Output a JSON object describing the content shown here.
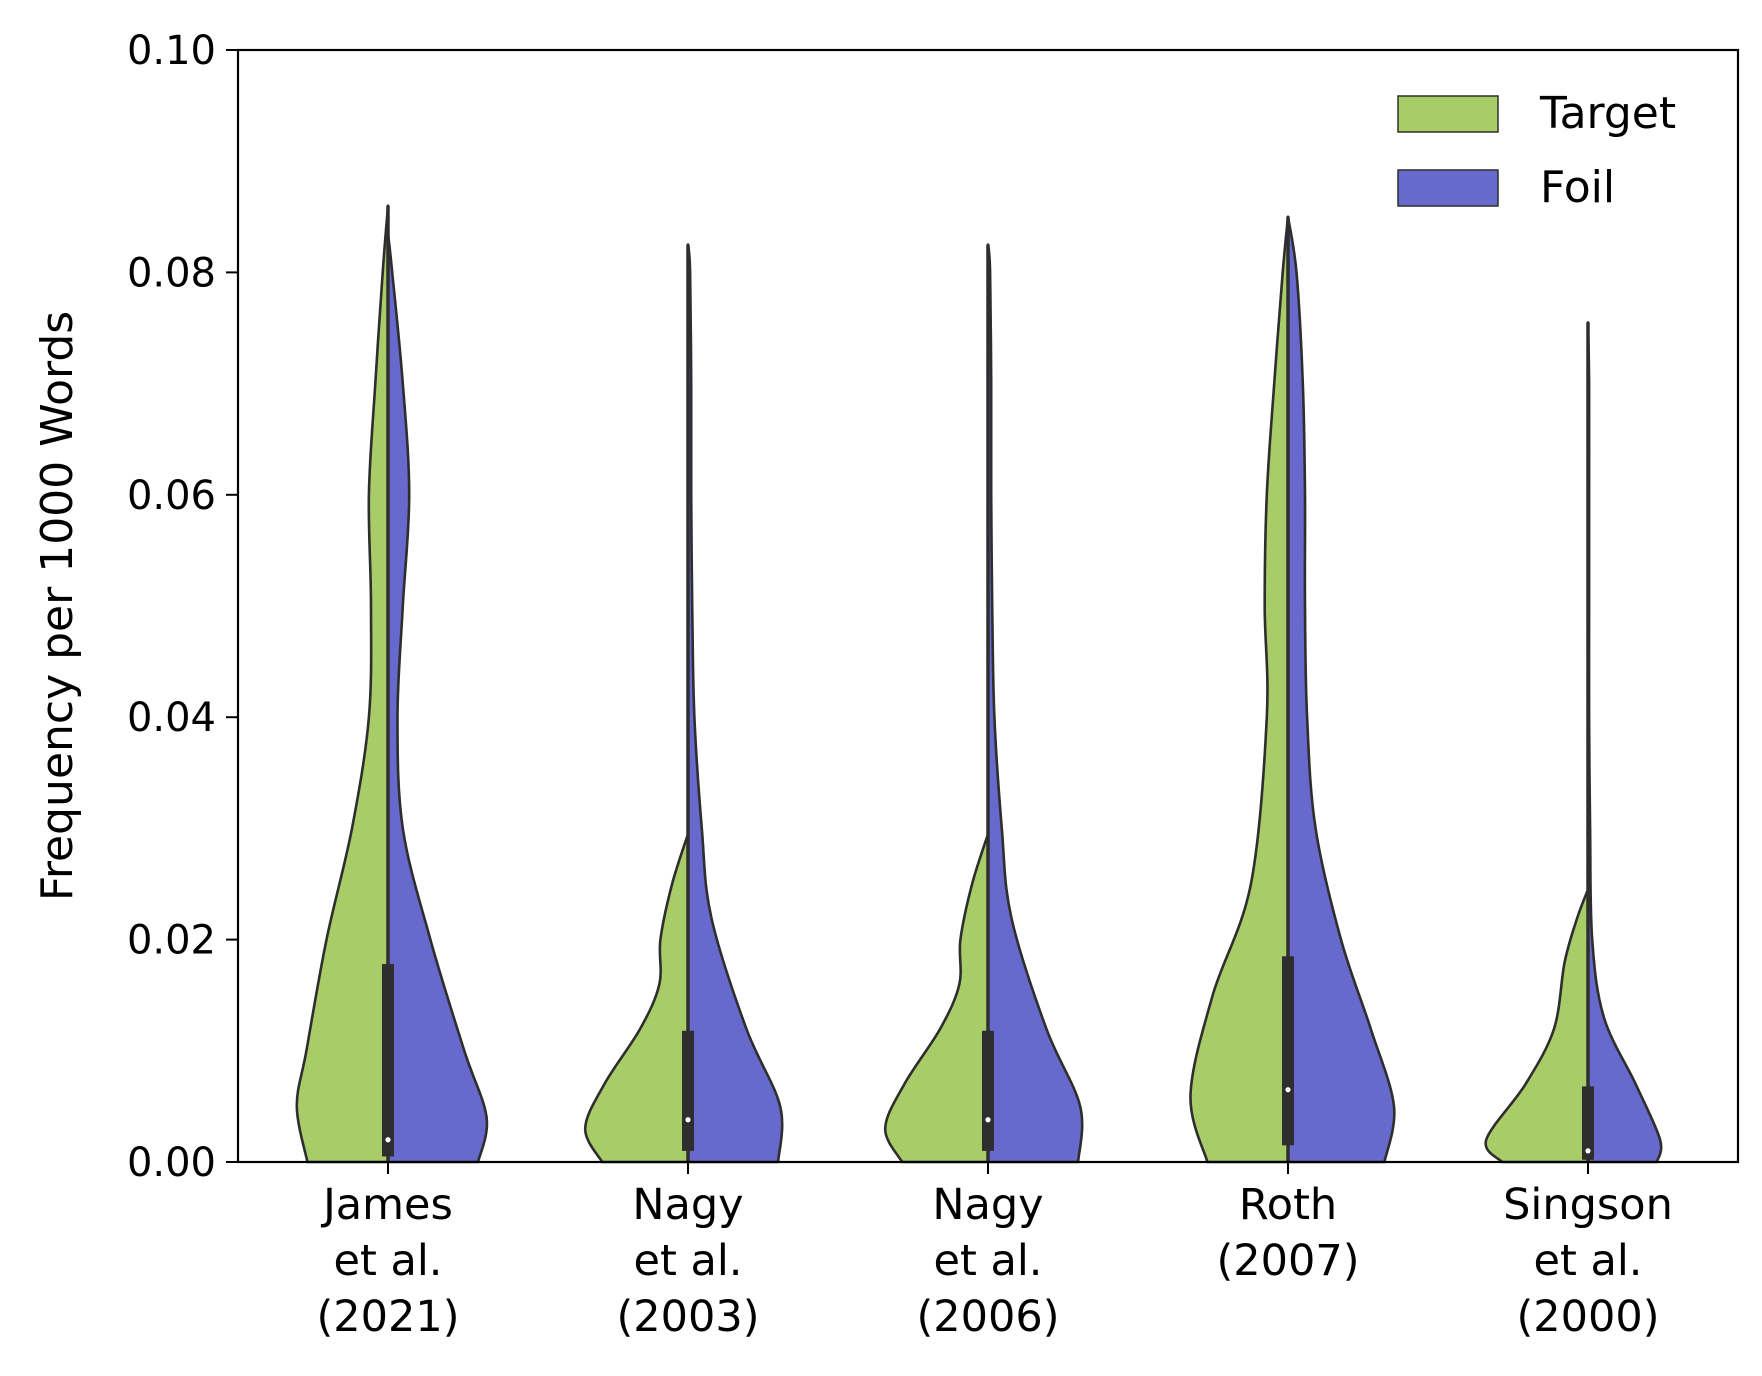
{
  "chart_data": {
    "type": "violin",
    "split": true,
    "ylabel": "Frequency per 1000 Words",
    "ylim": [
      0,
      0.1
    ],
    "yticks": [
      "0.00",
      "0.02",
      "0.04",
      "0.06",
      "0.08",
      "0.10"
    ],
    "legend": {
      "placement": "top-right"
    },
    "colors": {
      "Target": "#a8cd68",
      "Foil": "#6769cc",
      "outline": "#2e2e2e",
      "box": "#2e2e2e"
    },
    "categories": [
      {
        "label": [
          "James",
          "et al.",
          "(2021)"
        ]
      },
      {
        "label": [
          "Nagy",
          "et al.",
          "(2003)"
        ]
      },
      {
        "label": [
          "Nagy",
          "et al.",
          "(2006)"
        ]
      },
      {
        "label": [
          "Roth",
          "(2007)"
        ]
      },
      {
        "label": [
          "Singson",
          "et al.",
          "(2000)"
        ]
      }
    ],
    "series": [
      {
        "name": "Target",
        "side": "left",
        "violins": [
          {
            "profile": [
              [
                0,
                0.76
              ],
              [
                0.005,
                0.86
              ],
              [
                0.01,
                0.77
              ],
              [
                0.02,
                0.58
              ],
              [
                0.03,
                0.34
              ],
              [
                0.04,
                0.18
              ],
              [
                0.05,
                0.16
              ],
              [
                0.06,
                0.18
              ],
              [
                0.07,
                0.12
              ],
              [
                0.08,
                0.05
              ],
              [
                0.086,
                0
              ]
            ]
          },
          {
            "profile": [
              [
                0,
                0.81
              ],
              [
                0.003,
                0.97
              ],
              [
                0.007,
                0.79
              ],
              [
                0.012,
                0.45
              ],
              [
                0.016,
                0.27
              ],
              [
                0.02,
                0.26
              ],
              [
                0.025,
                0.15
              ],
              [
                0.0295,
                0
              ]
            ]
          },
          {
            "profile": [
              [
                0,
                0.81
              ],
              [
                0.003,
                0.97
              ],
              [
                0.007,
                0.79
              ],
              [
                0.012,
                0.45
              ],
              [
                0.016,
                0.27
              ],
              [
                0.02,
                0.26
              ],
              [
                0.025,
                0.15
              ],
              [
                0.0295,
                0
              ]
            ]
          },
          {
            "profile": [
              [
                0,
                0.76
              ],
              [
                0.006,
                0.92
              ],
              [
                0.015,
                0.71
              ],
              [
                0.025,
                0.35
              ],
              [
                0.04,
                0.2
              ],
              [
                0.05,
                0.22
              ],
              [
                0.06,
                0.2
              ],
              [
                0.07,
                0.13
              ],
              [
                0.08,
                0.05
              ],
              [
                0.085,
                0
              ]
            ]
          },
          {
            "profile": [
              [
                0,
                0.81
              ],
              [
                0.002,
                0.96
              ],
              [
                0.007,
                0.59
              ],
              [
                0.012,
                0.32
              ],
              [
                0.018,
                0.22
              ],
              [
                0.022,
                0.1
              ],
              [
                0.0245,
                0
              ]
            ]
          }
        ]
      },
      {
        "name": "Foil",
        "side": "right",
        "violins": [
          {
            "profile": [
              [
                0,
                0.85
              ],
              [
                0.004,
                0.93
              ],
              [
                0.01,
                0.72
              ],
              [
                0.02,
                0.4
              ],
              [
                0.03,
                0.14
              ],
              [
                0.04,
                0.09
              ],
              [
                0.05,
                0.14
              ],
              [
                0.06,
                0.2
              ],
              [
                0.07,
                0.14
              ],
              [
                0.08,
                0.04
              ],
              [
                0.0835,
                0
              ]
            ]
          },
          {
            "profile": [
              [
                0,
                0.85
              ],
              [
                0.005,
                0.87
              ],
              [
                0.012,
                0.55
              ],
              [
                0.022,
                0.22
              ],
              [
                0.03,
                0.13
              ],
              [
                0.04,
                0.06
              ],
              [
                0.05,
                0.04
              ],
              [
                0.06,
                0.03
              ],
              [
                0.07,
                0.03
              ],
              [
                0.08,
                0.02
              ],
              [
                0.0825,
                0
              ]
            ]
          },
          {
            "profile": [
              [
                0,
                0.85
              ],
              [
                0.005,
                0.87
              ],
              [
                0.012,
                0.55
              ],
              [
                0.022,
                0.22
              ],
              [
                0.03,
                0.13
              ],
              [
                0.04,
                0.06
              ],
              [
                0.05,
                0.04
              ],
              [
                0.06,
                0.03
              ],
              [
                0.07,
                0.03
              ],
              [
                0.08,
                0.02
              ],
              [
                0.0825,
                0
              ]
            ]
          },
          {
            "profile": [
              [
                0,
                0.91
              ],
              [
                0.005,
                1.0
              ],
              [
                0.012,
                0.78
              ],
              [
                0.02,
                0.5
              ],
              [
                0.03,
                0.26
              ],
              [
                0.04,
                0.18
              ],
              [
                0.05,
                0.16
              ],
              [
                0.06,
                0.16
              ],
              [
                0.07,
                0.14
              ],
              [
                0.08,
                0.08
              ],
              [
                0.085,
                0
              ]
            ]
          },
          {
            "profile": [
              [
                0,
                0.65
              ],
              [
                0.002,
                0.68
              ],
              [
                0.007,
                0.45
              ],
              [
                0.013,
                0.15
              ],
              [
                0.02,
                0.04
              ],
              [
                0.03,
                0.02
              ],
              [
                0.04,
                0.01
              ],
              [
                0.05,
                0.01
              ],
              [
                0.06,
                0.01
              ],
              [
                0.07,
                0.01
              ],
              [
                0.0755,
                0
              ]
            ]
          }
        ]
      }
    ],
    "boxes": [
      {
        "whisker": [
          0,
          0.086
        ],
        "q1": 0.0005,
        "q3": 0.0178,
        "median": 0.002
      },
      {
        "whisker": [
          0,
          0.0825
        ],
        "q1": 0.001,
        "q3": 0.0118,
        "median": 0.0038
      },
      {
        "whisker": [
          0,
          0.0825
        ],
        "q1": 0.001,
        "q3": 0.0118,
        "median": 0.0038
      },
      {
        "whisker": [
          0,
          0.085
        ],
        "q1": 0.0015,
        "q3": 0.0185,
        "median": 0.0065
      },
      {
        "whisker": [
          0,
          0.0755
        ],
        "q1": 0.0002,
        "q3": 0.0068,
        "median": 0.001
      }
    ]
  }
}
